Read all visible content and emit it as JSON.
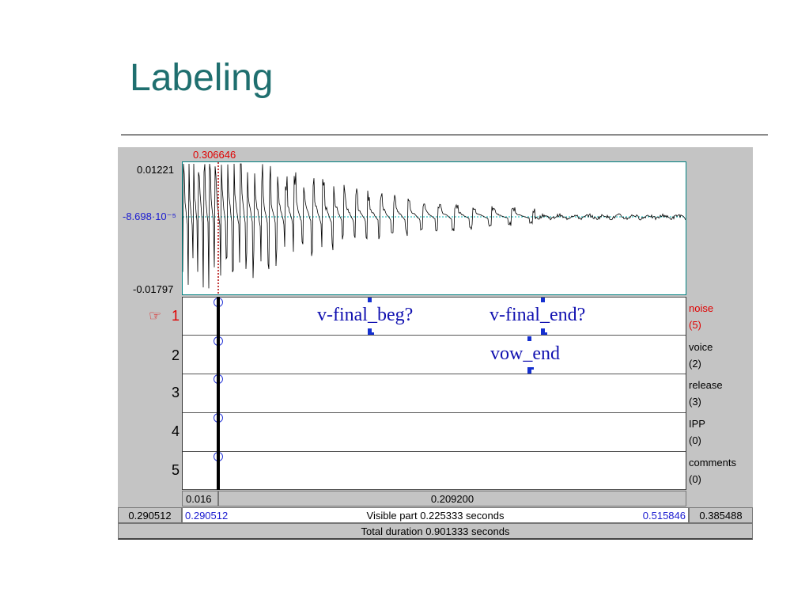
{
  "slide": {
    "title": "Labeling"
  },
  "waveform": {
    "cursor_time": "0.306646",
    "y_max": "0.01221",
    "y_mid": "-8.698·10⁻⁵",
    "y_min": "-0.01797"
  },
  "tiers": [
    {
      "number": "1",
      "pointer": "☞",
      "name": "noise",
      "count": "(5)",
      "selected": true
    },
    {
      "number": "2",
      "name": "voice",
      "count": "(2)"
    },
    {
      "number": "3",
      "name": "release",
      "count": "(3)"
    },
    {
      "number": "4",
      "name": "IPP",
      "count": "(0)"
    },
    {
      "number": "5",
      "name": "comments",
      "count": "(0)"
    }
  ],
  "labels": {
    "tier1_a": "v-final_beg?",
    "tier1_b": "v-final_end?",
    "tier2_a": "vow_end"
  },
  "time_bars": {
    "left_segment": "0.016",
    "right_segment": "0.209200",
    "outer_left": "0.290512",
    "visible_start": "0.290512",
    "visible_text": "Visible part 0.225333 seconds",
    "visible_end": "0.515846",
    "outer_right": "0.385488",
    "total": "Total duration 0.901333 seconds"
  },
  "colors": {
    "title": "#1f6f6f",
    "label_blue": "#1010b0",
    "boundary_blue": "#1530d0",
    "selected_red": "#e00000",
    "wave_border": "#008080"
  }
}
